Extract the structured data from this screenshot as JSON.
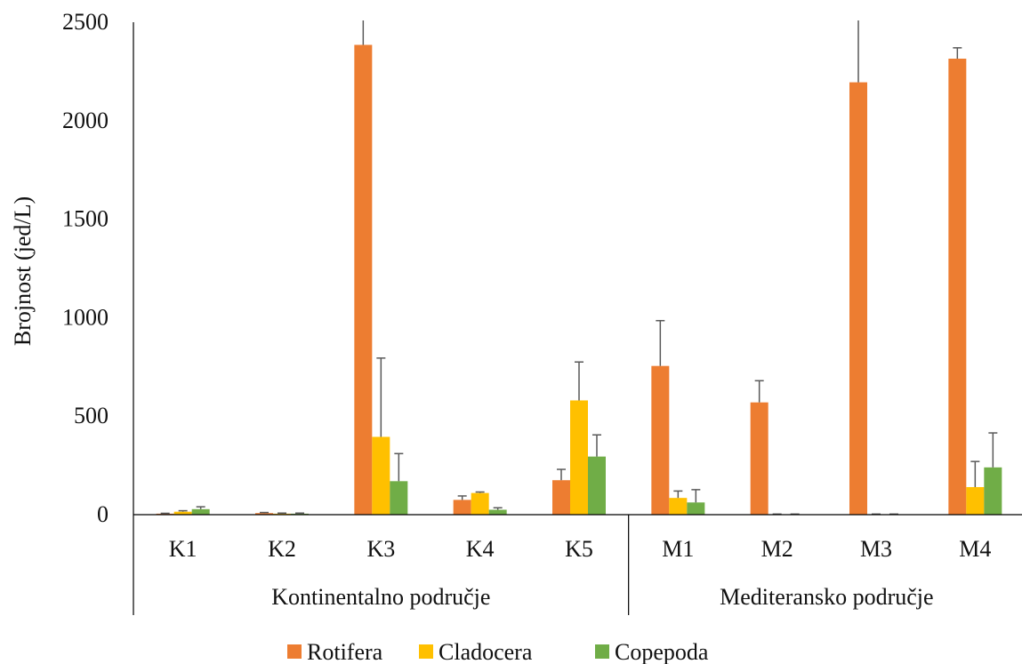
{
  "chart_data": {
    "type": "bar",
    "xlabel": "",
    "ylabel": "Brojnost (jed/L)",
    "ylim": [
      0,
      2500
    ],
    "yticks": [
      0,
      500,
      1000,
      1500,
      2000,
      2500
    ],
    "grid": false,
    "legend_position": "bottom",
    "categories": [
      "K1",
      "K2",
      "K3",
      "K4",
      "K5",
      "M1",
      "M2",
      "M3",
      "M4"
    ],
    "groups": [
      {
        "label": "Kontinentalno područje",
        "categories": [
          "K1",
          "K2",
          "K3",
          "K4",
          "K5"
        ]
      },
      {
        "label": "Mediteransko područje",
        "categories": [
          "M1",
          "M2",
          "M3",
          "M4"
        ]
      }
    ],
    "series": [
      {
        "name": "Rotifera",
        "color": "#ED7D31",
        "values": [
          5,
          8,
          2385,
          75,
          175,
          755,
          570,
          2195,
          2315
        ],
        "error": [
          2,
          3,
          240,
          20,
          55,
          230,
          110,
          680,
          55
        ]
      },
      {
        "name": "Cladocera",
        "color": "#FFC000",
        "values": [
          15,
          5,
          395,
          110,
          580,
          85,
          2,
          2,
          140
        ],
        "error": [
          5,
          3,
          400,
          5,
          195,
          35,
          1,
          1,
          130
        ]
      },
      {
        "name": "Copepoda",
        "color": "#70AD47",
        "values": [
          28,
          5,
          170,
          25,
          295,
          62,
          2,
          2,
          240
        ],
        "error": [
          12,
          3,
          140,
          10,
          110,
          65,
          1,
          1,
          175
        ]
      }
    ]
  }
}
